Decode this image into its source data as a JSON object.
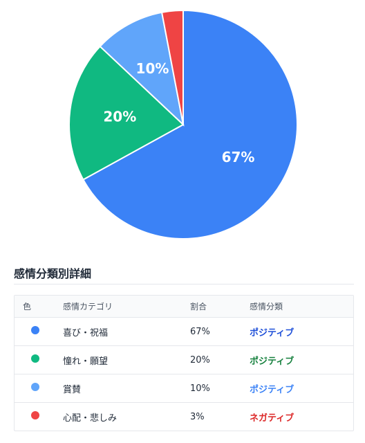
{
  "chart_data": {
    "type": "pie",
    "slices": [
      {
        "label": "喜び・祝福",
        "value": 67,
        "display": "67%",
        "color": "#3b82f6"
      },
      {
        "label": "憧れ・願望",
        "value": 20,
        "display": "20%",
        "color": "#10b981"
      },
      {
        "label": "賞賛",
        "value": 10,
        "display": "10%",
        "color": "#60a5fa"
      },
      {
        "label": "心配・悲しみ",
        "value": 3,
        "display": "",
        "color": "#ef4444"
      }
    ]
  },
  "section": {
    "title": "感情分類別詳細"
  },
  "table": {
    "headers": {
      "color": "色",
      "category": "感情カテゴリ",
      "ratio": "割合",
      "type": "感情分類"
    },
    "rows": [
      {
        "color": "#3b82f6",
        "category": "喜び・祝福",
        "ratio": "67%",
        "type": "ポジティブ",
        "type_color": "#1d4ed8"
      },
      {
        "color": "#10b981",
        "category": "憧れ・願望",
        "ratio": "20%",
        "type": "ポジティブ",
        "type_color": "#15803d"
      },
      {
        "color": "#60a5fa",
        "category": "賞賛",
        "ratio": "10%",
        "type": "ポジティブ",
        "type_color": "#3b82f6"
      },
      {
        "color": "#ef4444",
        "category": "心配・悲しみ",
        "ratio": "3%",
        "type": "ネガティブ",
        "type_color": "#dc2626"
      }
    ]
  }
}
